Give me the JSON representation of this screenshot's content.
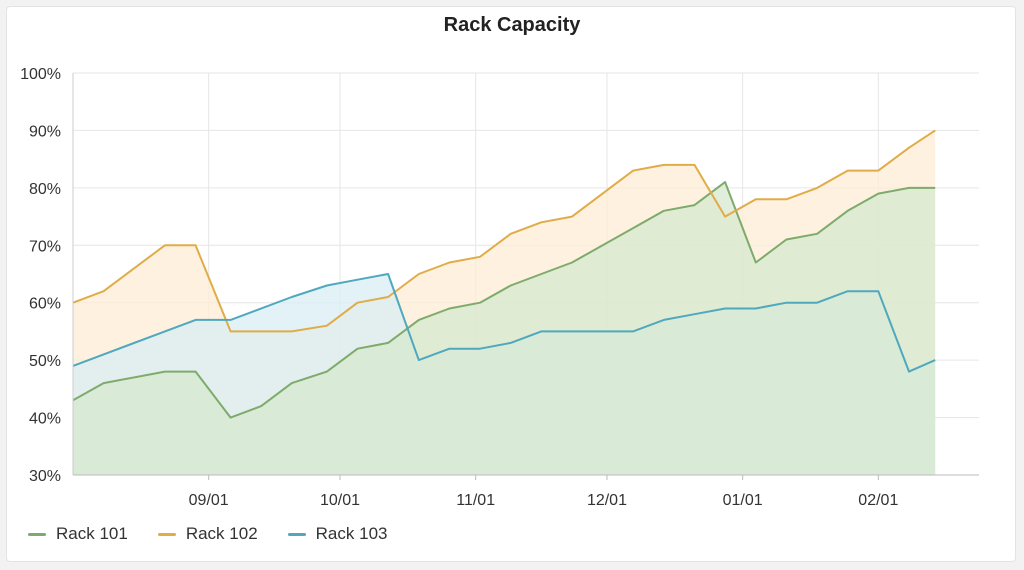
{
  "chart_data": {
    "type": "area",
    "title": "Rack Capacity",
    "ylim": [
      30,
      100
    ],
    "xlim": [
      "2023-08-01",
      "2024-02-24"
    ],
    "y_ticks": [
      {
        "value": 30,
        "label": "30%"
      },
      {
        "value": 40,
        "label": "40%"
      },
      {
        "value": 50,
        "label": "50%"
      },
      {
        "value": 60,
        "label": "60%"
      },
      {
        "value": 70,
        "label": "70%"
      },
      {
        "value": 80,
        "label": "80%"
      },
      {
        "value": 90,
        "label": "90%"
      },
      {
        "value": 100,
        "label": "100%"
      }
    ],
    "x_ticks": [
      {
        "value": "2023-09-01",
        "label": "09/01"
      },
      {
        "value": "2023-10-01",
        "label": "10/01"
      },
      {
        "value": "2023-11-01",
        "label": "11/01"
      },
      {
        "value": "2023-12-01",
        "label": "12/01"
      },
      {
        "value": "2024-01-01",
        "label": "01/01"
      },
      {
        "value": "2024-02-01",
        "label": "02/01"
      }
    ],
    "grid": true,
    "legend_position": "bottom-left",
    "series": [
      {
        "name": "Rack 101",
        "color": "#7eab6b",
        "fill": "#d5e8cf",
        "points": [
          [
            "2023-08-01",
            43
          ],
          [
            "2023-08-08",
            46
          ],
          [
            "2023-08-22",
            48
          ],
          [
            "2023-08-29",
            48
          ],
          [
            "2023-09-06",
            40
          ],
          [
            "2023-09-13",
            42
          ],
          [
            "2023-09-20",
            46
          ],
          [
            "2023-09-28",
            48
          ],
          [
            "2023-10-05",
            52
          ],
          [
            "2023-10-12",
            53
          ],
          [
            "2023-10-19",
            57
          ],
          [
            "2023-10-26",
            59
          ],
          [
            "2023-11-02",
            60
          ],
          [
            "2023-11-09",
            63
          ],
          [
            "2023-11-16",
            65
          ],
          [
            "2023-11-23",
            67
          ],
          [
            "2023-12-14",
            76
          ],
          [
            "2023-12-21",
            77
          ],
          [
            "2023-12-28",
            81
          ],
          [
            "2024-01-04",
            67
          ],
          [
            "2024-01-11",
            71
          ],
          [
            "2024-01-18",
            72
          ],
          [
            "2024-01-25",
            76
          ],
          [
            "2024-02-01",
            79
          ],
          [
            "2024-02-08",
            80
          ],
          [
            "2024-02-14",
            80
          ]
        ]
      },
      {
        "name": "Rack 102",
        "color": "#e0ac48",
        "fill": "#fdecd6",
        "points": [
          [
            "2023-08-01",
            60
          ],
          [
            "2023-08-08",
            62
          ],
          [
            "2023-08-22",
            70
          ],
          [
            "2023-08-29",
            70
          ],
          [
            "2023-09-06",
            55
          ],
          [
            "2023-09-20",
            55
          ],
          [
            "2023-09-28",
            56
          ],
          [
            "2023-10-05",
            60
          ],
          [
            "2023-10-12",
            61
          ],
          [
            "2023-10-19",
            65
          ],
          [
            "2023-10-26",
            67
          ],
          [
            "2023-11-02",
            68
          ],
          [
            "2023-11-09",
            72
          ],
          [
            "2023-11-16",
            74
          ],
          [
            "2023-11-23",
            75
          ],
          [
            "2023-12-07",
            83
          ],
          [
            "2023-12-14",
            84
          ],
          [
            "2023-12-21",
            84
          ],
          [
            "2023-12-28",
            75
          ],
          [
            "2024-01-04",
            78
          ],
          [
            "2024-01-11",
            78
          ],
          [
            "2024-01-18",
            80
          ],
          [
            "2024-01-25",
            83
          ],
          [
            "2024-02-01",
            83
          ],
          [
            "2024-02-08",
            87
          ],
          [
            "2024-02-14",
            90
          ]
        ]
      },
      {
        "name": "Rack 103",
        "color": "#4fa8bd",
        "fill": "#daeef4",
        "points": [
          [
            "2023-08-01",
            49
          ],
          [
            "2023-08-08",
            51
          ],
          [
            "2023-08-22",
            55
          ],
          [
            "2023-08-29",
            57
          ],
          [
            "2023-09-06",
            57
          ],
          [
            "2023-09-20",
            61
          ],
          [
            "2023-09-28",
            63
          ],
          [
            "2023-10-05",
            64
          ],
          [
            "2023-10-12",
            65
          ],
          [
            "2023-10-19",
            50
          ],
          [
            "2023-10-26",
            52
          ],
          [
            "2023-11-02",
            52
          ],
          [
            "2023-11-09",
            53
          ],
          [
            "2023-11-16",
            55
          ],
          [
            "2023-12-07",
            55
          ],
          [
            "2023-12-14",
            57
          ],
          [
            "2023-12-21",
            58
          ],
          [
            "2023-12-28",
            59
          ],
          [
            "2024-01-04",
            59
          ],
          [
            "2024-01-11",
            60
          ],
          [
            "2024-01-18",
            60
          ],
          [
            "2024-01-25",
            62
          ],
          [
            "2024-02-01",
            62
          ],
          [
            "2024-02-08",
            48
          ],
          [
            "2024-02-14",
            50
          ]
        ]
      }
    ]
  }
}
